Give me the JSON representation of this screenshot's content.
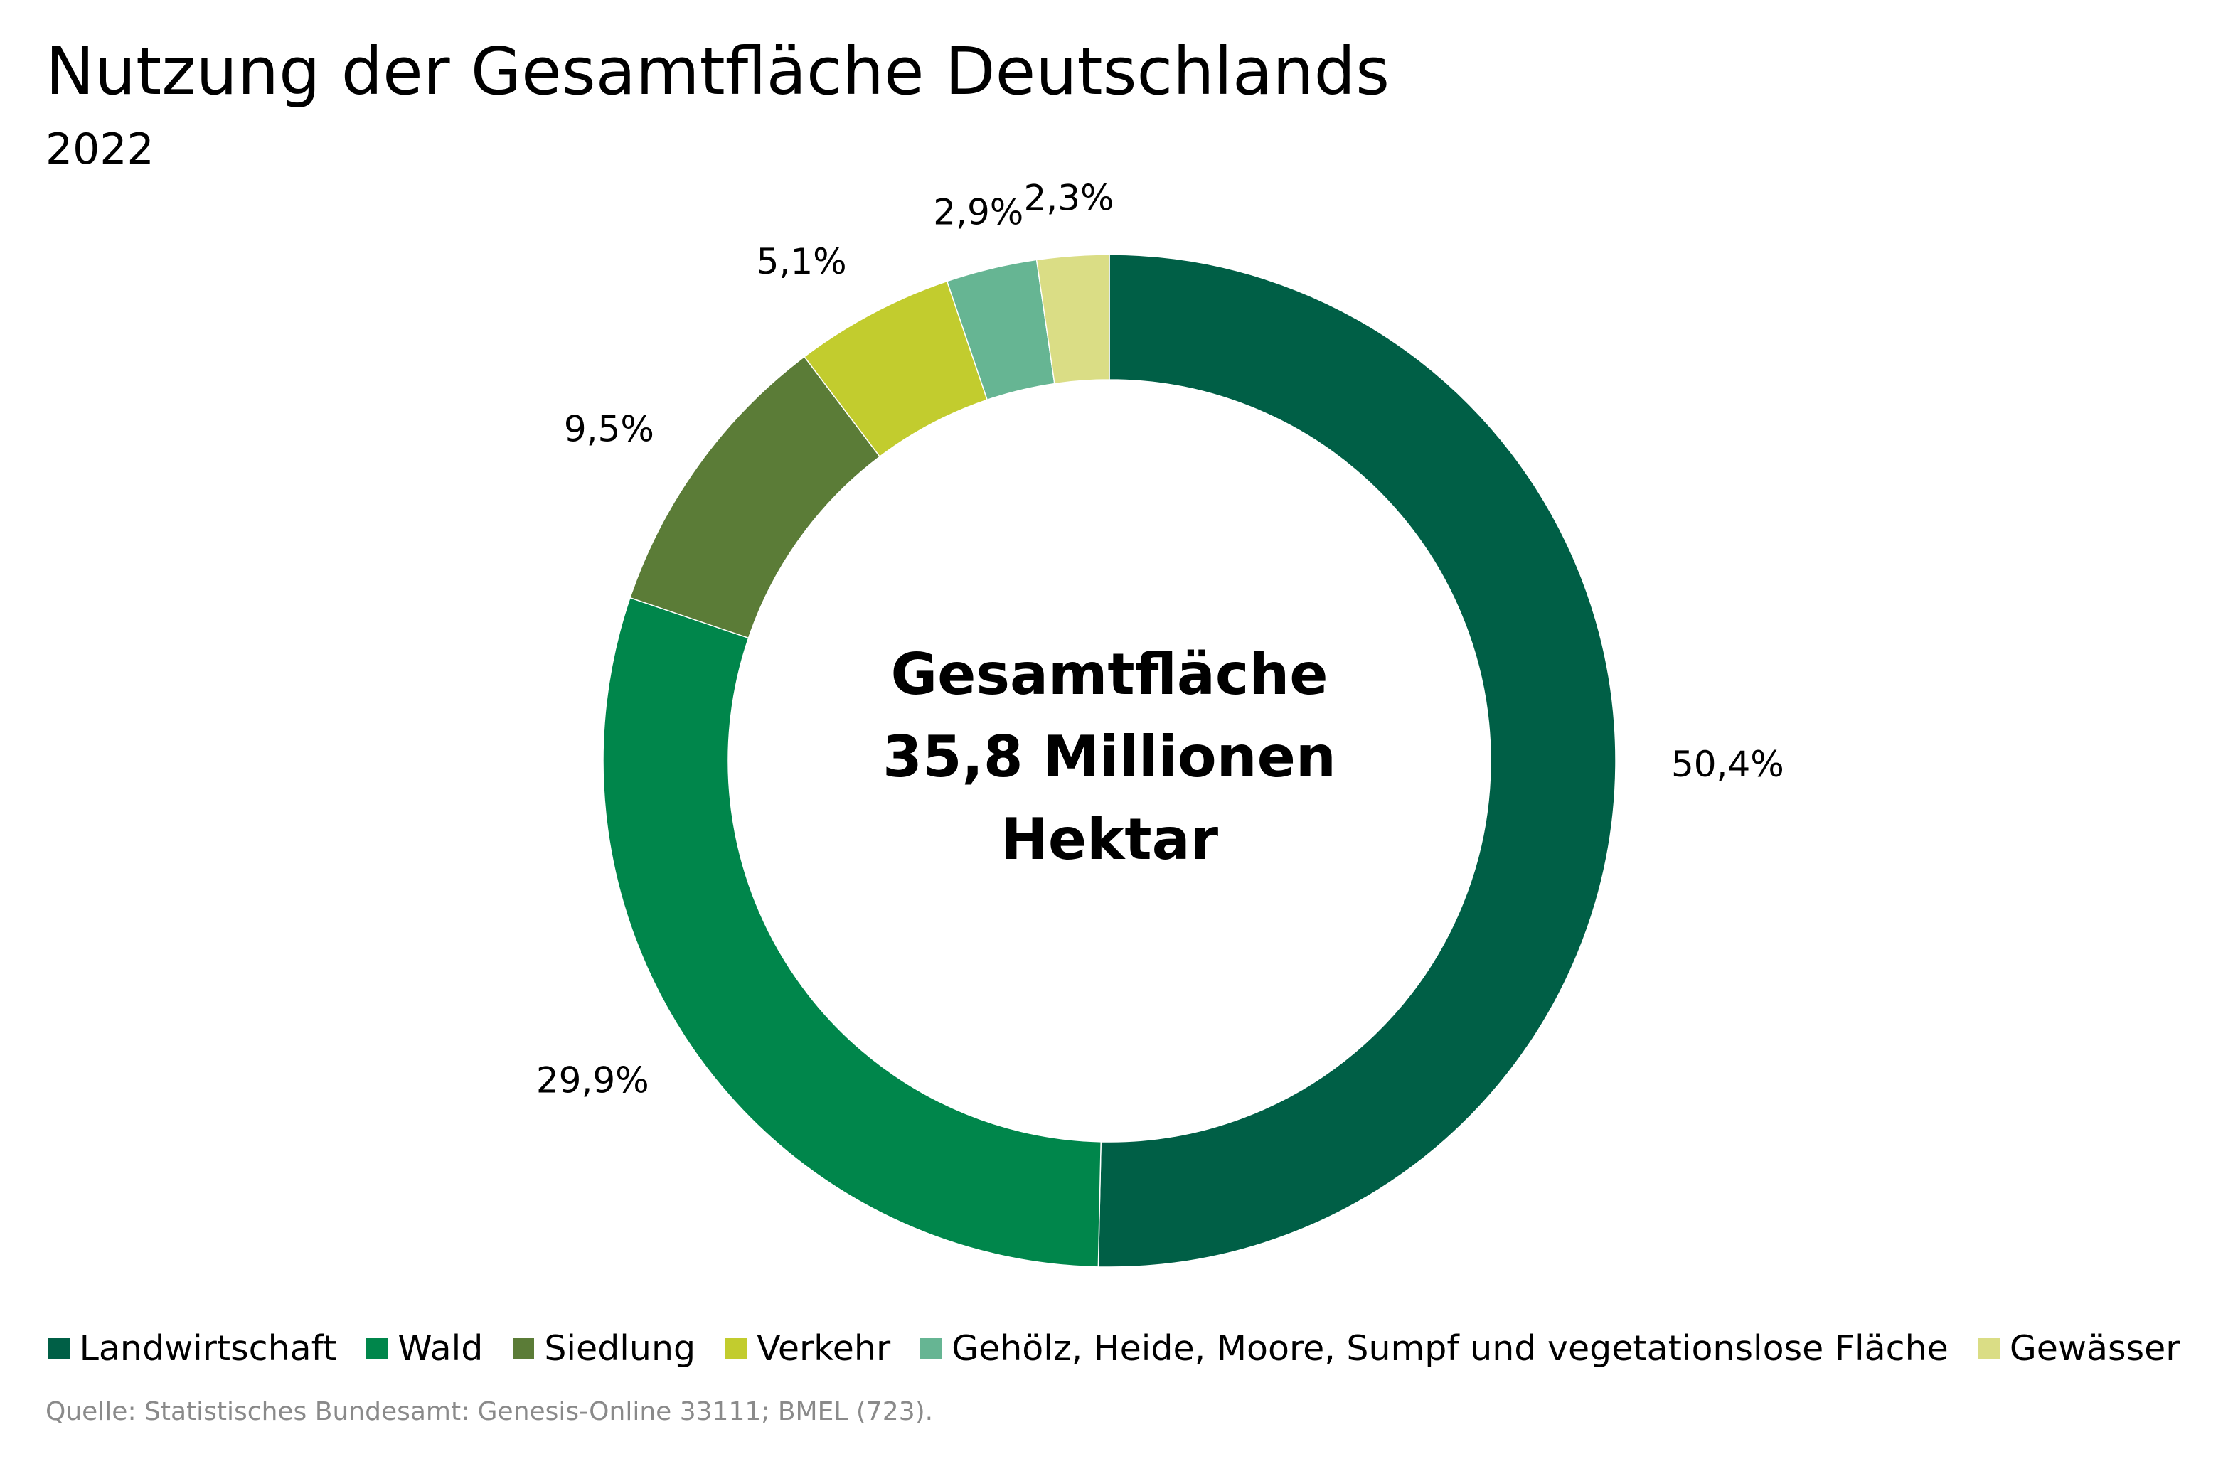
{
  "header": {
    "title": "Nutzung der Gesamtfläche Deutschlands",
    "subtitle": "2022"
  },
  "chart_data": {
    "type": "pie",
    "variant": "donut",
    "title": "Nutzung der Gesamtfläche Deutschlands",
    "subtitle": "2022",
    "center_label": [
      "Gesamtfläche",
      "35,8 Millionen",
      "Hektar"
    ],
    "unit": "%",
    "legend_position": "bottom",
    "series": [
      {
        "name": "Landwirtschaft",
        "value": 50.4,
        "label": "50,4%",
        "color": "#005f46"
      },
      {
        "name": "Wald",
        "value": 29.9,
        "label": "29,9%",
        "color": "#00864b"
      },
      {
        "name": "Siedlung",
        "value": 9.5,
        "label": "9,5%",
        "color": "#5b7c37"
      },
      {
        "name": "Verkehr",
        "value": 5.1,
        "label": "5,1%",
        "color": "#c2cc2e"
      },
      {
        "name": "Gehölz, Heide, Moore, Sumpf und vegetationslose Fläche",
        "value": 2.9,
        "label": "2,9%",
        "color": "#66b593"
      },
      {
        "name": "Gewässer",
        "value": 2.3,
        "label": "2,3%",
        "color": "#dadd85"
      }
    ]
  },
  "footer": {
    "source": "Quelle: Statistisches Bundesamt: Genesis-Online 33111; BMEL (723)."
  }
}
